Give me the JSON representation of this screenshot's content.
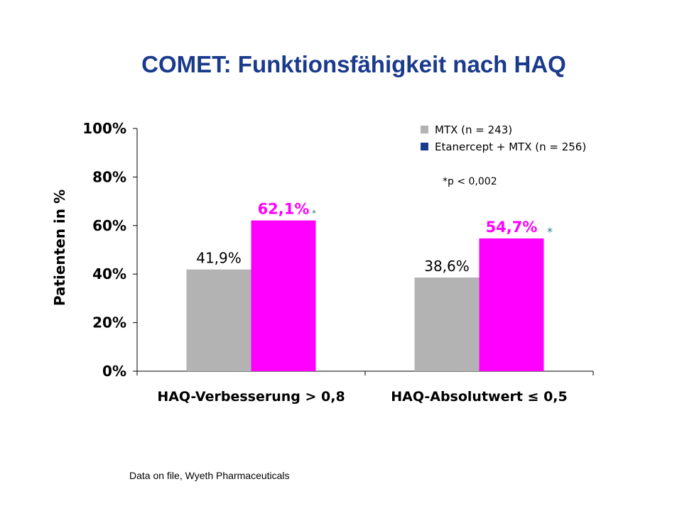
{
  "slide": {
    "title": "COMET: Funktionsfähigkeit nach HAQ",
    "footnote": "Data on file, Wyeth Pharmaceuticals",
    "significance_note": "*p < 0,002"
  },
  "chart_data": {
    "type": "bar",
    "title": "",
    "ylabel": "Patienten in %",
    "xlabel": "",
    "ylim": [
      0,
      100
    ],
    "yticks": [
      "0%",
      "20%",
      "40%",
      "60%",
      "80%",
      "100%"
    ],
    "ytick_values": [
      0,
      20,
      40,
      60,
      80,
      100
    ],
    "grid": false,
    "legend_position": "top-right",
    "categories": [
      "HAQ-Verbesserung > 0,8",
      "HAQ-Absolutwert ≤ 0,5"
    ],
    "series": [
      {
        "name": "MTX (n = 243)",
        "color": "#b3b3b3",
        "legend_color": "#b3b3b3",
        "values": [
          41.9,
          38.6
        ],
        "labels": [
          "41,9%",
          "38,6%"
        ],
        "label_color": "#000000",
        "label_bold": false
      },
      {
        "name": "Etanercept + MTX (n = 256)",
        "color": "#ff00ff",
        "legend_color": "#1a3a8c",
        "values": [
          62.1,
          54.7
        ],
        "labels": [
          "62,1%",
          "54,7%"
        ],
        "label_color": "#ff00ff",
        "label_bold": true,
        "marker": "*",
        "marker_color": "#2a7a8a"
      }
    ]
  }
}
